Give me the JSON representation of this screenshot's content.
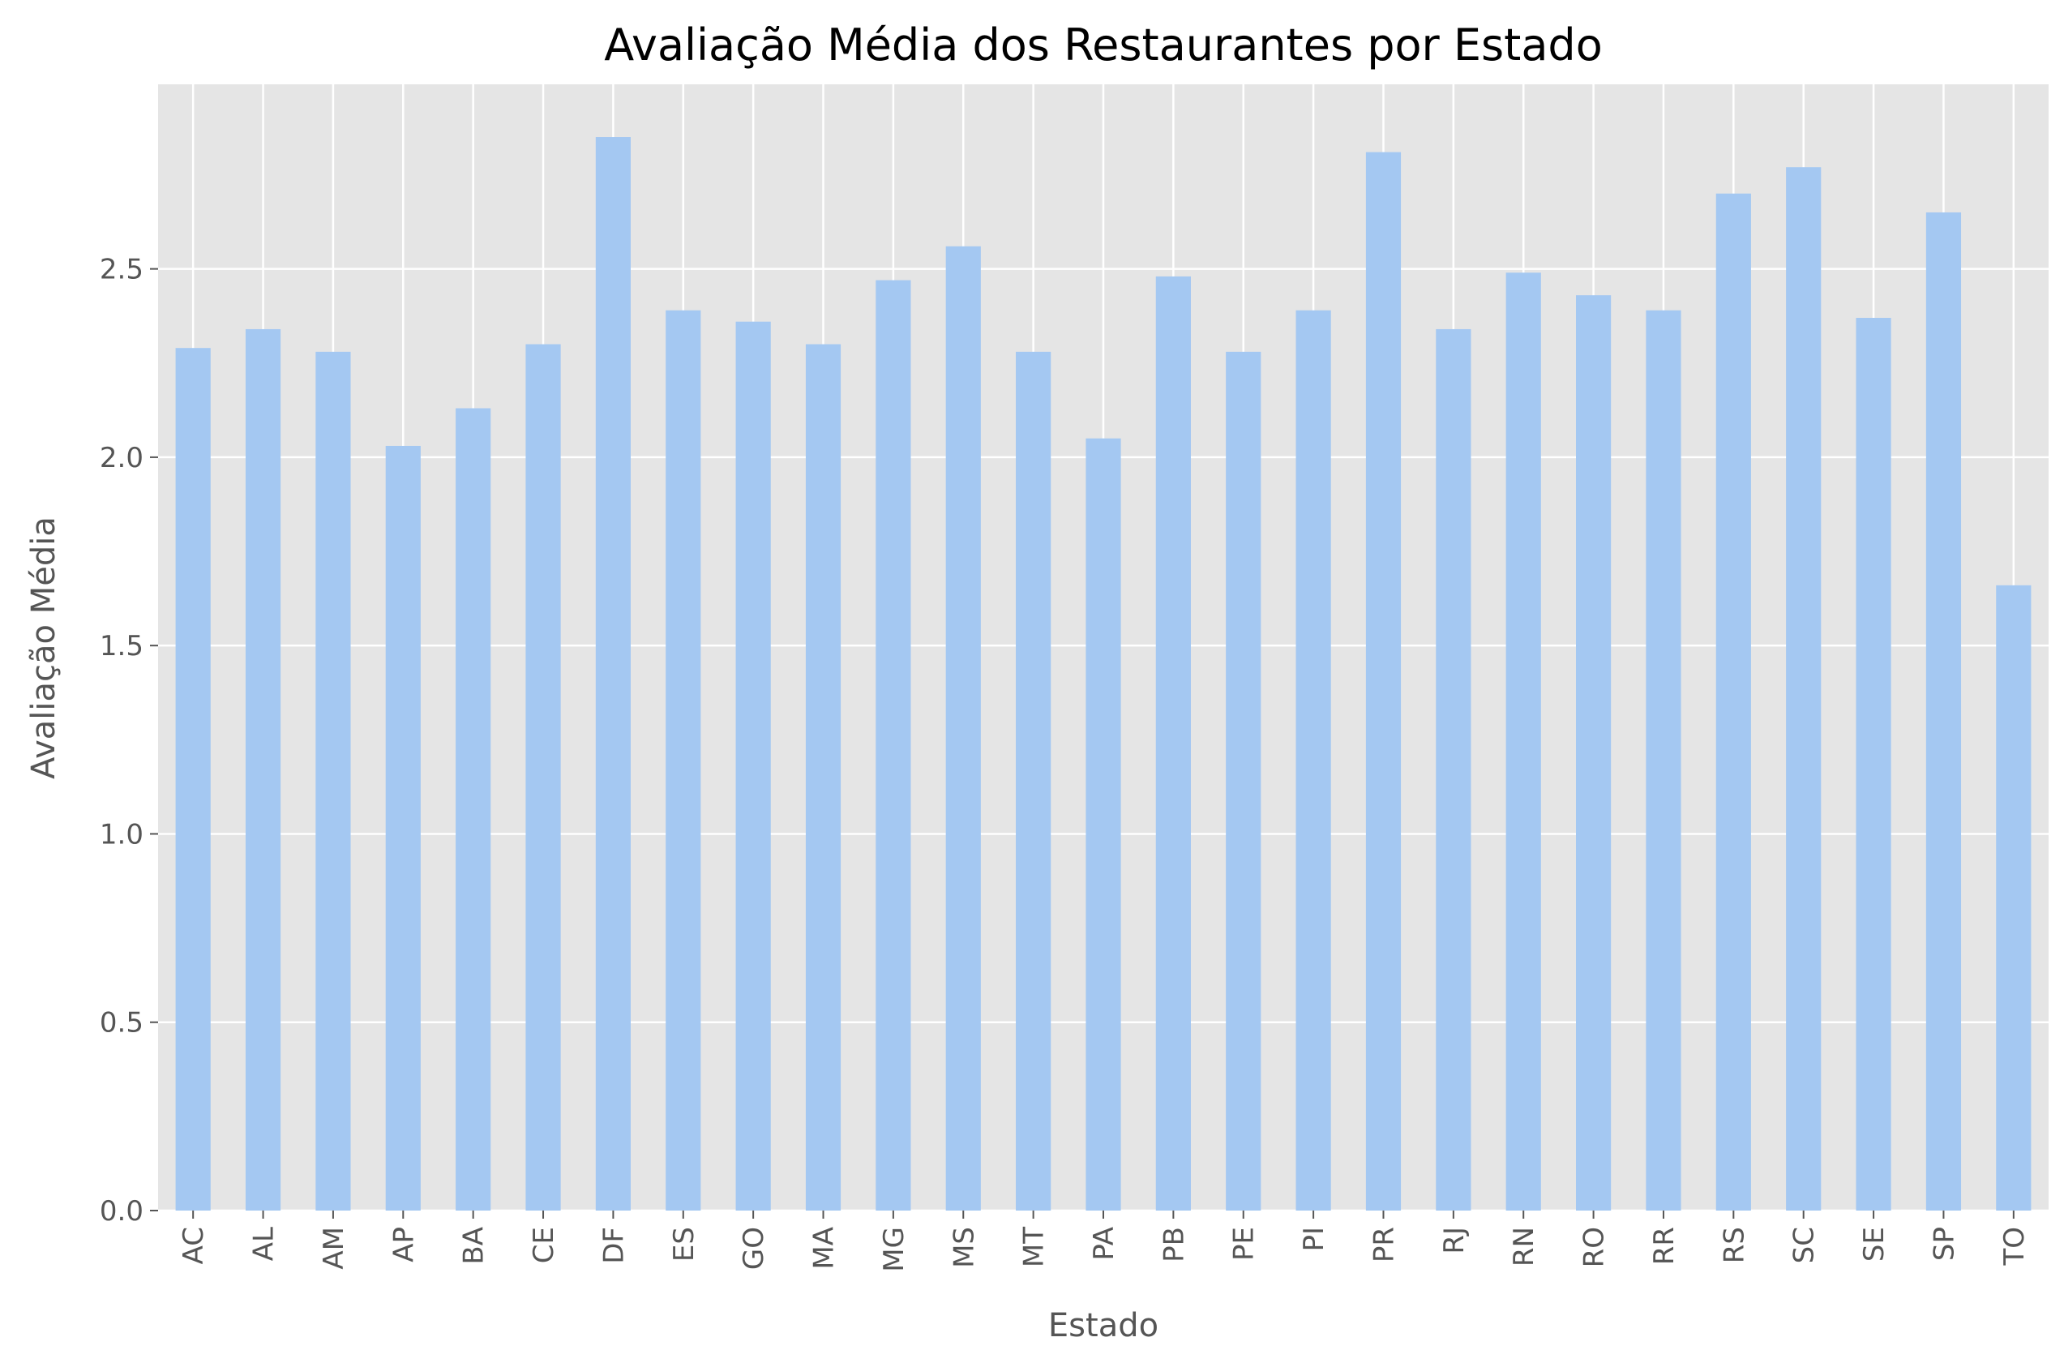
{
  "chart_data": {
    "type": "bar",
    "title": "Avaliação Média dos Restaurantes por Estado",
    "xlabel": "Estado",
    "ylabel": "Avaliação Média",
    "categories": [
      "AC",
      "AL",
      "AM",
      "AP",
      "BA",
      "CE",
      "DF",
      "ES",
      "GO",
      "MA",
      "MG",
      "MS",
      "MT",
      "PA",
      "PB",
      "PE",
      "PI",
      "PR",
      "RJ",
      "RN",
      "RO",
      "RR",
      "RS",
      "SC",
      "SE",
      "SP",
      "TO"
    ],
    "values": [
      2.29,
      2.34,
      2.28,
      2.03,
      2.13,
      2.3,
      2.85,
      2.39,
      2.36,
      2.3,
      2.47,
      2.56,
      2.28,
      2.05,
      2.48,
      2.28,
      2.39,
      2.81,
      2.34,
      2.49,
      2.43,
      2.39,
      2.7,
      2.77,
      2.37,
      2.65,
      1.66
    ],
    "yticks": [
      "0.0",
      "0.5",
      "1.0",
      "1.5",
      "2.0",
      "2.5"
    ],
    "ylim": [
      0,
      2.99
    ],
    "grid": true,
    "colors": {
      "bar": "#a4c8f2",
      "plot_background": "#e5e5e5",
      "grid": "#ffffff"
    }
  }
}
